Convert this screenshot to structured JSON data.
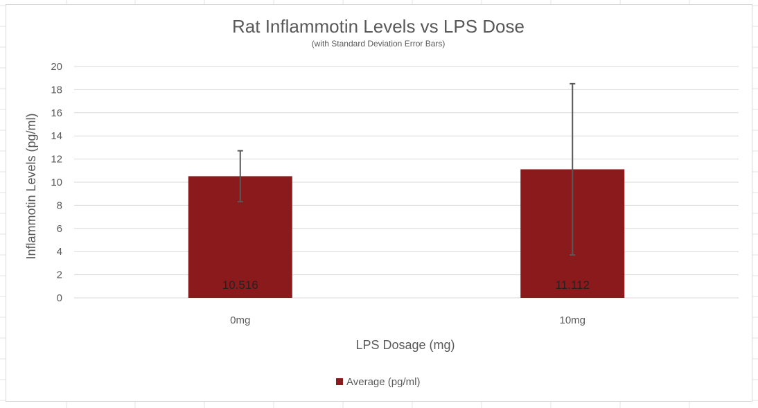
{
  "chart_data": {
    "type": "bar",
    "title": "Rat Inflammotin Levels vs LPS Dose",
    "subtitle": "(with Standard Deviation Error Bars)",
    "xlabel": "LPS Dosage (mg)",
    "ylabel": "Inflammotin Levels (pg/ml)",
    "categories": [
      "0mg",
      "10mg"
    ],
    "series": [
      {
        "name": "Average (pg/ml)",
        "values": [
          10.516,
          11.112
        ],
        "error": [
          2.2,
          7.4
        ],
        "data_labels": [
          "10.516",
          "11.112"
        ],
        "color": "#8b1a1c"
      }
    ],
    "ylim": [
      0,
      20
    ],
    "yticks": [
      0,
      2,
      4,
      6,
      8,
      10,
      12,
      14,
      16,
      18,
      20
    ],
    "grid": true,
    "legend_position": "bottom"
  },
  "colors": {
    "gridline": "#d9d9d9",
    "error_bar": "#595959",
    "sheet_grid": "#e3e3e3"
  }
}
